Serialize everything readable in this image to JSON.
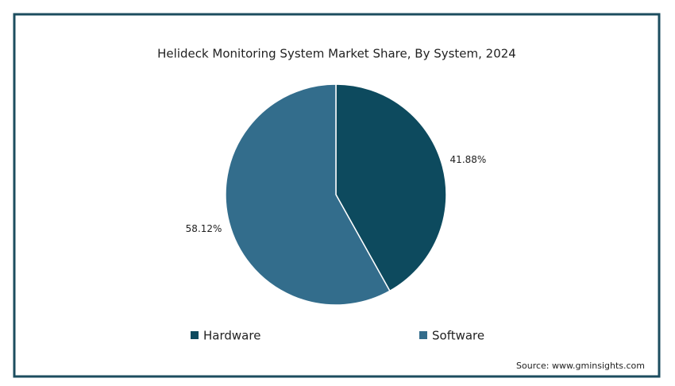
{
  "chart_data": {
    "type": "pie",
    "title": "Helideck Monitoring System Market Share, By System, 2024",
    "categories": [
      "Hardware",
      "Software"
    ],
    "values": [
      41.88,
      58.12
    ],
    "value_labels": [
      "41.88%",
      "58.12%"
    ],
    "colors": [
      "#0d4a5e",
      "#336d8c"
    ],
    "legend": "bottom",
    "source": "Source: www.gminsights.com"
  }
}
